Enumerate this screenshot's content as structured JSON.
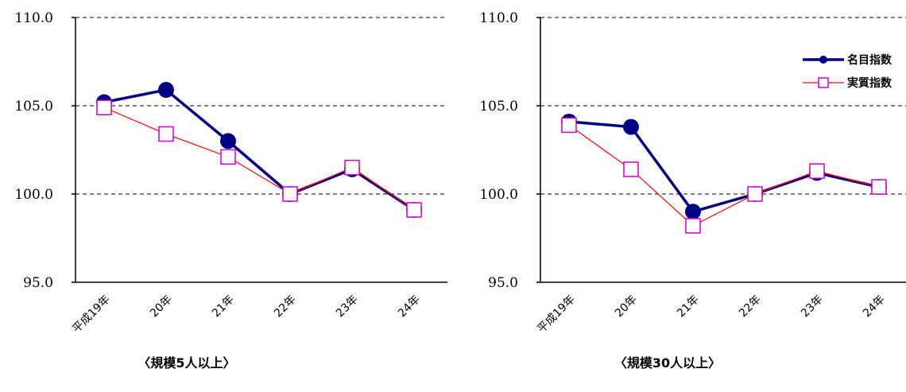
{
  "chart_data": [
    {
      "type": "line",
      "caption": "〈規模5人以上〉",
      "categories": [
        "平成19年",
        "20年",
        "21年",
        "22年",
        "23年",
        "24年"
      ],
      "ylim": [
        95.0,
        110.0
      ],
      "yticks": [
        "110.0",
        "105.0",
        "100.0",
        "95.0"
      ],
      "ytick_values": [
        110,
        105,
        100,
        95
      ],
      "grid": true,
      "legend": null,
      "series": [
        {
          "name": "名目指数",
          "color": "#000080",
          "marker": "circle",
          "values": [
            105.2,
            105.9,
            103.0,
            100.0,
            101.4,
            99.1
          ]
        },
        {
          "name": "実質指数",
          "color": "#ff0000",
          "marker_color": "#cc00cc",
          "marker": "square",
          "values": [
            104.9,
            103.4,
            102.1,
            100.0,
            101.5,
            99.1
          ]
        }
      ]
    },
    {
      "type": "line",
      "caption": "〈規模30人以上〉",
      "categories": [
        "平成19年",
        "20年",
        "21年",
        "22年",
        "23年",
        "24年"
      ],
      "ylim": [
        95.0,
        110.0
      ],
      "yticks": [
        "110.0",
        "105.0",
        "100.0",
        "95.0"
      ],
      "ytick_values": [
        110,
        105,
        100,
        95
      ],
      "grid": true,
      "legend": "top-right",
      "series": [
        {
          "name": "名目指数",
          "color": "#000080",
          "marker": "circle",
          "values": [
            104.1,
            103.8,
            99.0,
            100.0,
            101.2,
            100.4
          ]
        },
        {
          "name": "実質指数",
          "color": "#ff0000",
          "marker_color": "#cc00cc",
          "marker": "square",
          "values": [
            103.9,
            101.4,
            98.2,
            100.0,
            101.3,
            100.4
          ]
        }
      ]
    }
  ]
}
